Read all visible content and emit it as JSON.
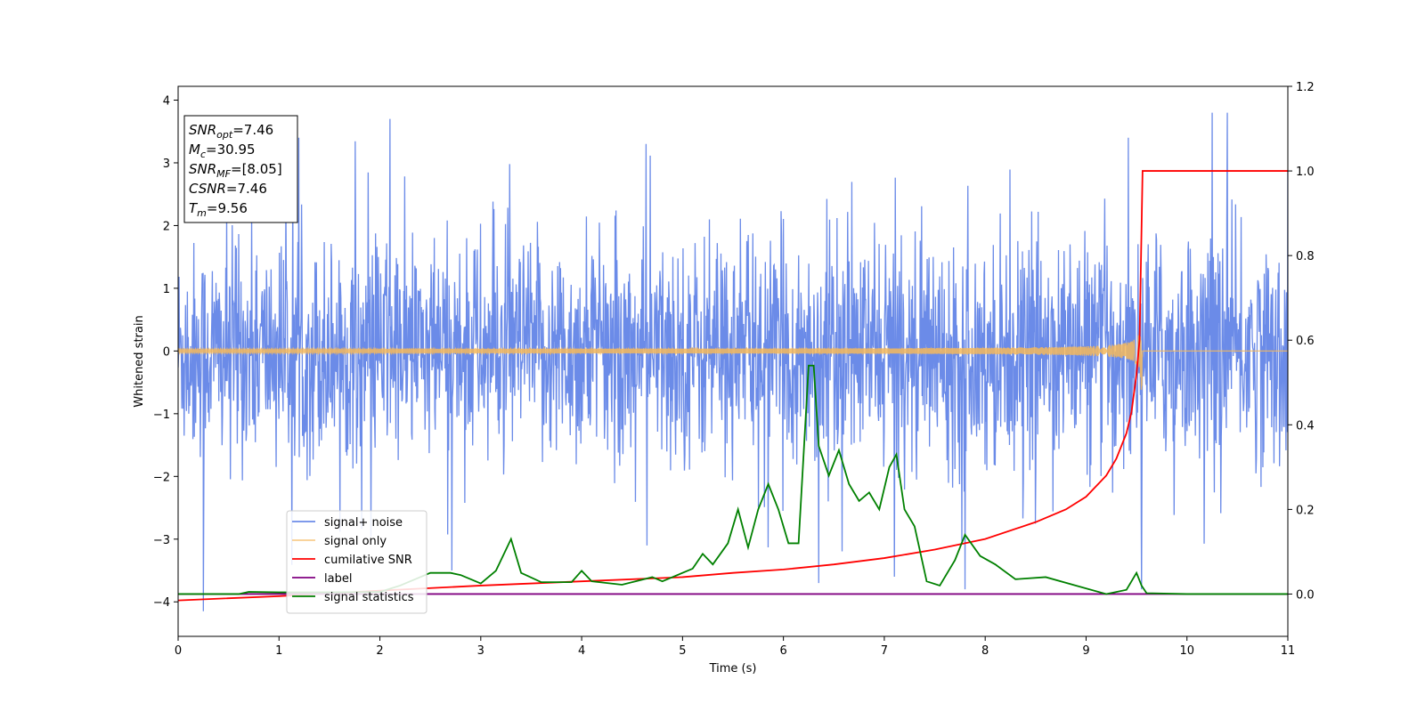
{
  "chart_data": {
    "type": "line",
    "title": "",
    "xlabel": "Time (s)",
    "ylabel": "Whitened strain",
    "y2label": "",
    "xlim": [
      0,
      11
    ],
    "ylim": [
      -4.55,
      4.22
    ],
    "y2lim": [
      -0.1,
      1.2
    ],
    "xticks": [
      0,
      1,
      2,
      3,
      4,
      5,
      6,
      7,
      8,
      9,
      10,
      11
    ],
    "yticks": [
      -4,
      -3,
      -2,
      -1,
      0,
      1,
      2,
      3,
      4
    ],
    "y2ticks": [
      0.0,
      0.2,
      0.4,
      0.6,
      0.8,
      1.0,
      1.2
    ],
    "grid": false,
    "legend_position": "lower-left",
    "series": [
      {
        "name": "signal+ noise",
        "axis": "left",
        "color": "#6b8be8",
        "kind": "noise",
        "std": 0.85,
        "peaks": [
          [
            0.25,
            -4.15
          ],
          [
            2.1,
            3.7
          ],
          [
            6.35,
            -3.7
          ],
          [
            7.1,
            -3.6
          ],
          [
            7.8,
            -3.8
          ],
          [
            10.25,
            3.8
          ],
          [
            10.4,
            3.8
          ],
          [
            9.55,
            -3.8
          ]
        ]
      },
      {
        "name": "signal only",
        "axis": "left",
        "color": "#f5b85c",
        "kind": "chirp",
        "merger_time": 9.56,
        "peak_amplitude": 0.85
      },
      {
        "name": "cumilative SNR",
        "axis": "right",
        "color": "#ff0000",
        "x": [
          0,
          1,
          2,
          3,
          4,
          5,
          5.5,
          6,
          6.5,
          7,
          7.5,
          8,
          8.5,
          8.8,
          9.0,
          9.2,
          9.3,
          9.4,
          9.45,
          9.5,
          9.53,
          9.56,
          9.6,
          10,
          11
        ],
        "y": [
          -0.015,
          -0.005,
          0.008,
          0.02,
          0.03,
          0.04,
          0.05,
          0.058,
          0.07,
          0.085,
          0.105,
          0.13,
          0.17,
          0.2,
          0.23,
          0.28,
          0.32,
          0.38,
          0.43,
          0.52,
          0.6,
          1.0,
          1.0,
          1.0,
          1.0
        ]
      },
      {
        "name": "label",
        "axis": "right",
        "color": "#800080",
        "x": [
          0,
          11
        ],
        "y": [
          0,
          0
        ]
      },
      {
        "name": "signal statistics",
        "axis": "right",
        "color": "#008000",
        "x": [
          0,
          0.6,
          0.7,
          1.0,
          1.5,
          2.0,
          2.2,
          2.5,
          2.7,
          2.8,
          2.9,
          3.0,
          3.15,
          3.3,
          3.4,
          3.6,
          3.9,
          4.0,
          4.1,
          4.4,
          4.7,
          4.8,
          5.1,
          5.2,
          5.3,
          5.45,
          5.55,
          5.65,
          5.75,
          5.85,
          5.95,
          6.05,
          6.15,
          6.25,
          6.3,
          6.35,
          6.45,
          6.55,
          6.65,
          6.75,
          6.85,
          6.95,
          7.05,
          7.12,
          7.2,
          7.3,
          7.42,
          7.55,
          7.7,
          7.8,
          7.95,
          8.1,
          8.3,
          8.6,
          8.9,
          9.2,
          9.4,
          9.5,
          9.55,
          9.6,
          10.0,
          11.0
        ],
        "y": [
          0,
          0,
          0.005,
          0.004,
          0.004,
          0.005,
          0.02,
          0.05,
          0.05,
          0.045,
          0.035,
          0.025,
          0.055,
          0.13,
          0.05,
          0.028,
          0.028,
          0.055,
          0.03,
          0.022,
          0.04,
          0.03,
          0.06,
          0.095,
          0.07,
          0.12,
          0.2,
          0.11,
          0.2,
          0.26,
          0.2,
          0.12,
          0.12,
          0.54,
          0.54,
          0.35,
          0.28,
          0.34,
          0.26,
          0.22,
          0.24,
          0.2,
          0.3,
          0.33,
          0.2,
          0.16,
          0.03,
          0.02,
          0.08,
          0.14,
          0.09,
          0.07,
          0.035,
          0.04,
          0.02,
          0.0,
          0.01,
          0.05,
          0.02,
          0.002,
          0.0,
          0.0
        ]
      }
    ],
    "annotation_box": {
      "lines": [
        {
          "var": "SNR",
          "sub": "opt",
          "value": "=7.46"
        },
        {
          "var": "M",
          "sub": "c",
          "value": "=30.95"
        },
        {
          "var": "SNR",
          "sub": "MF",
          "value": "=[8.05]"
        },
        {
          "var": "CSNR",
          "sub": "",
          "value": "=7.46"
        },
        {
          "var": "T",
          "sub": "m",
          "value": "=9.56"
        }
      ]
    }
  }
}
